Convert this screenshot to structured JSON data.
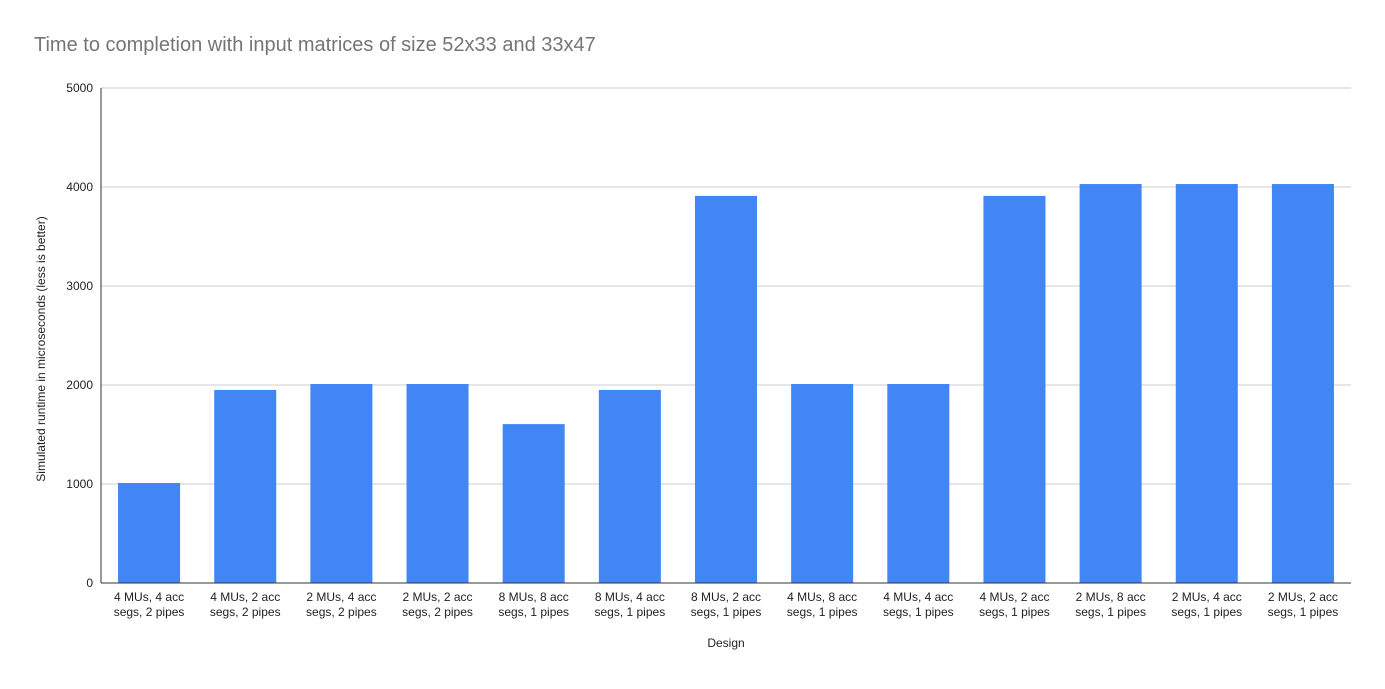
{
  "chart_data": {
    "type": "bar",
    "title": "Time to completion with input matrices of size 52x33 and 33x47",
    "xlabel": "Design",
    "ylabel": "Simulated runtime in microseconds (less is better)",
    "ylim": [
      0,
      5000
    ],
    "yticks": [
      "0",
      "1000",
      "2000",
      "3000",
      "4000",
      "5000"
    ],
    "grid": true,
    "legend": "none",
    "categories": [
      [
        "4 MUs, 4 acc",
        "segs, 2 pipes"
      ],
      [
        "4 MUs, 2 acc",
        "segs, 2 pipes"
      ],
      [
        "2 MUs, 4 acc",
        "segs, 2 pipes"
      ],
      [
        "2 MUs, 2 acc",
        "segs, 2 pipes"
      ],
      [
        "8 MUs, 8 acc",
        "segs, 1 pipes"
      ],
      [
        "8 MUs, 4 acc",
        "segs, 1 pipes"
      ],
      [
        "8 MUs, 2 acc",
        "segs, 1 pipes"
      ],
      [
        "4 MUs, 8 acc",
        "segs, 1 pipes"
      ],
      [
        "4 MUs, 4 acc",
        "segs, 1 pipes"
      ],
      [
        "4 MUs, 2 acc",
        "segs, 1 pipes"
      ],
      [
        "2 MUs, 8 acc",
        "segs, 1 pipes"
      ],
      [
        "2 MUs, 4 acc",
        "segs, 1 pipes"
      ],
      [
        "2 MUs, 2 acc",
        "segs, 1 pipes"
      ]
    ],
    "values": [
      1010,
      1950,
      2010,
      2010,
      1605,
      1950,
      3910,
      2010,
      2010,
      3910,
      4030,
      4030,
      4030
    ],
    "colors": {
      "bar": "#4285f4",
      "grid": "#cccccc",
      "axis": "#333333",
      "tick_text": "#222222",
      "title_text": "#757575"
    }
  }
}
